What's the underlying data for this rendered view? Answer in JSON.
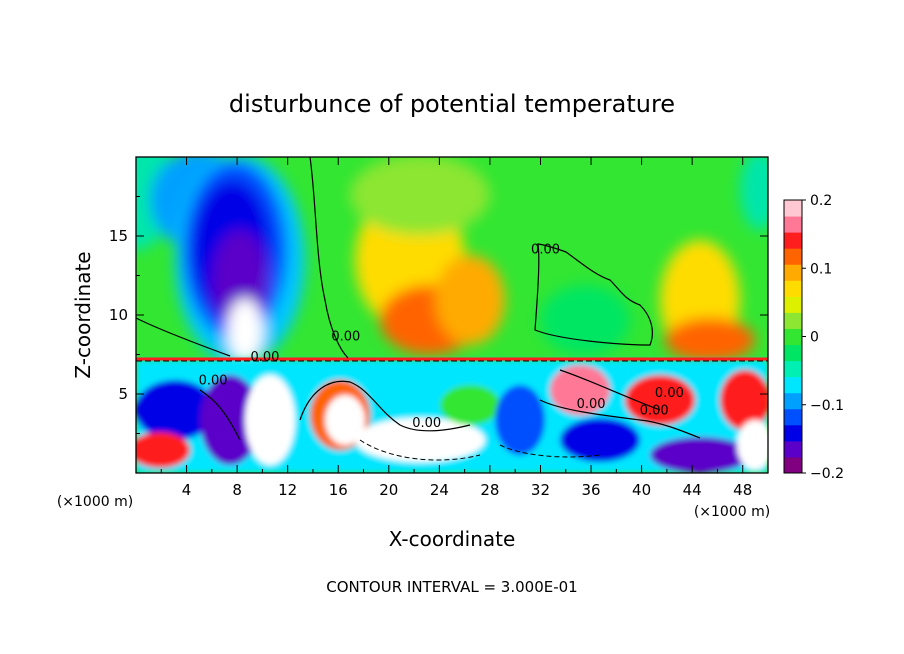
{
  "chart_data": {
    "type": "heatmap",
    "title": "disturbunce of potential temperature",
    "xlabel": "X-coordinate",
    "ylabel": "Z-coordinate",
    "xlim": [
      0,
      50
    ],
    "ylim": [
      0,
      20
    ],
    "x_ticks": [
      4,
      8,
      12,
      16,
      20,
      24,
      28,
      32,
      36,
      40,
      44,
      48
    ],
    "y_ticks": [
      5,
      10,
      15
    ],
    "x_unit_left": "(×1000 m)",
    "x_unit_right": "(×1000 m)",
    "contour_interval": "CONTOUR INTERVAL = 3.000E-01",
    "colorbar": {
      "min": -0.2,
      "max": 0.2,
      "tick_values": [
        0.2,
        0.1,
        0,
        -0.1,
        -0.2
      ],
      "tick_labels": [
        "0.2",
        "0.1",
        "0",
        "−0.1",
        "−0.2"
      ],
      "colors": [
        "#800080",
        "#5a00c8",
        "#0000e6",
        "#0050ff",
        "#00a0ff",
        "#00e6ff",
        "#00f0b4",
        "#00e664",
        "#32e632",
        "#8ce632",
        "#dcf000",
        "#ffdc00",
        "#ffaa00",
        "#ff6400",
        "#ff1e1e",
        "#ff7896",
        "#ffc8d2"
      ]
    },
    "contour_labels": [
      {
        "x": 16.6,
        "z": 8.4,
        "text": "0.00"
      },
      {
        "x": 10.2,
        "z": 7.1,
        "text": "0.00"
      },
      {
        "x": 6.1,
        "z": 5.6,
        "text": "0.00"
      },
      {
        "x": 23.0,
        "z": 2.9,
        "text": "0.00"
      },
      {
        "x": 32.4,
        "z": 13.9,
        "text": "0.00"
      },
      {
        "x": 36.0,
        "z": 4.1,
        "text": "0.00"
      },
      {
        "x": 42.2,
        "z": 4.8,
        "text": "0.00"
      },
      {
        "x": 41.0,
        "z": 3.7,
        "text": "0.00"
      }
    ]
  }
}
